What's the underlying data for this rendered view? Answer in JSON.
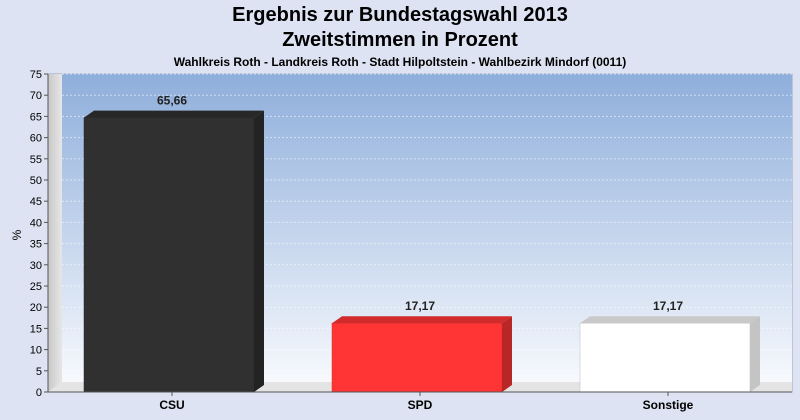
{
  "chart_data": {
    "type": "bar",
    "title": "Ergebnis zur Bundestagswahl 2013",
    "title_line2": "Zweitstimmen in Prozent",
    "subtitle": "Wahlkreis Roth - Landkreis Roth - Stadt Hilpoltstein - Wahlbezirk Mindorf (0011)",
    "ylabel": "%",
    "xlabel": "",
    "ylim": [
      0,
      75
    ],
    "y_ticks": [
      "0",
      "5",
      "10",
      "15",
      "20",
      "25",
      "30",
      "35",
      "40",
      "45",
      "50",
      "55",
      "60",
      "65",
      "70",
      "75"
    ],
    "categories": [
      "CSU",
      "SPD",
      "Sonstige"
    ],
    "values": [
      65.66,
      17.17,
      17.17
    ],
    "value_labels": [
      "65,66",
      "17,17",
      "17,17"
    ],
    "colors": [
      "#303030",
      "#ff3535",
      "#ffffff"
    ],
    "grid": true,
    "legend": "none"
  }
}
